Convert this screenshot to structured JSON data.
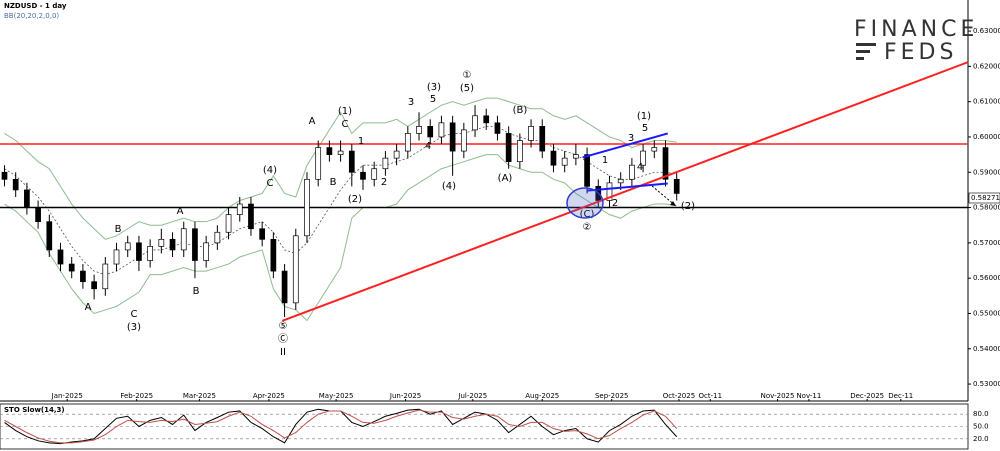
{
  "chart_data": [
    {
      "type": "candlestick",
      "title": "NZDUSD - 1 day",
      "subtitle": "BB(20,20,2,0,0)",
      "brand": {
        "line1": "FINANCE",
        "line2": "FEDS"
      },
      "x": [
        -28,
        -23,
        -18,
        -13,
        -8,
        -3,
        2,
        7,
        12,
        17,
        22,
        27,
        32,
        37,
        42,
        47,
        52,
        57,
        62,
        67,
        72,
        77,
        82,
        87,
        92,
        97,
        102,
        107,
        112,
        117,
        122,
        127,
        132,
        137,
        142,
        147,
        152,
        157,
        162,
        167,
        172,
        177,
        182,
        187,
        192,
        197,
        202,
        207,
        212,
        217,
        222,
        227,
        232,
        237,
        242,
        247,
        252,
        257,
        262,
        267,
        272
      ],
      "open": [
        0.59,
        0.588,
        0.585,
        0.58,
        0.576,
        0.568,
        0.564,
        0.562,
        0.559,
        0.557,
        0.564,
        0.568,
        0.57,
        0.565,
        0.569,
        0.571,
        0.568,
        0.574,
        0.565,
        0.57,
        0.573,
        0.578,
        0.581,
        0.574,
        0.571,
        0.562,
        0.553,
        0.572,
        0.588,
        0.597,
        0.595,
        0.596,
        0.59,
        0.588,
        0.591,
        0.594,
        0.596,
        0.601,
        0.603,
        0.6,
        0.604,
        0.596,
        0.602,
        0.606,
        0.604,
        0.601,
        0.593,
        0.599,
        0.603,
        0.596,
        0.592,
        0.594,
        0.595,
        0.586,
        0.582,
        0.587,
        0.588,
        0.592,
        0.596,
        0.597,
        0.588
      ],
      "high": [
        0.592,
        0.59,
        0.587,
        0.582,
        0.578,
        0.57,
        0.566,
        0.564,
        0.561,
        0.566,
        0.57,
        0.572,
        0.572,
        0.571,
        0.574,
        0.573,
        0.576,
        0.576,
        0.572,
        0.575,
        0.58,
        0.583,
        0.583,
        0.576,
        0.573,
        0.564,
        0.574,
        0.59,
        0.599,
        0.599,
        0.599,
        0.598,
        0.592,
        0.593,
        0.596,
        0.598,
        0.603,
        0.607,
        0.605,
        0.606,
        0.606,
        0.604,
        0.609,
        0.608,
        0.606,
        0.603,
        0.601,
        0.605,
        0.605,
        0.598,
        0.596,
        0.598,
        0.597,
        0.588,
        0.589,
        0.59,
        0.594,
        0.598,
        0.599,
        0.599,
        0.59
      ],
      "low": [
        0.586,
        0.583,
        0.578,
        0.574,
        0.566,
        0.562,
        0.56,
        0.557,
        0.554,
        0.555,
        0.562,
        0.566,
        0.562,
        0.563,
        0.567,
        0.566,
        0.566,
        0.56,
        0.563,
        0.568,
        0.571,
        0.576,
        0.572,
        0.569,
        0.56,
        0.549,
        0.551,
        0.57,
        0.586,
        0.593,
        0.593,
        0.586,
        0.585,
        0.586,
        0.589,
        0.592,
        0.594,
        0.599,
        0.598,
        0.598,
        0.589,
        0.594,
        0.6,
        0.602,
        0.599,
        0.591,
        0.591,
        0.597,
        0.594,
        0.59,
        0.59,
        0.592,
        0.584,
        0.58,
        0.58,
        0.585,
        0.586,
        0.59,
        0.594,
        0.586,
        0.582
      ],
      "close": [
        0.588,
        0.585,
        0.58,
        0.576,
        0.568,
        0.564,
        0.562,
        0.559,
        0.557,
        0.564,
        0.568,
        0.57,
        0.565,
        0.569,
        0.571,
        0.568,
        0.574,
        0.565,
        0.57,
        0.573,
        0.578,
        0.581,
        0.574,
        0.571,
        0.562,
        0.553,
        0.572,
        0.588,
        0.597,
        0.595,
        0.596,
        0.59,
        0.588,
        0.591,
        0.594,
        0.596,
        0.601,
        0.603,
        0.6,
        0.604,
        0.596,
        0.602,
        0.606,
        0.604,
        0.601,
        0.593,
        0.599,
        0.603,
        0.596,
        0.592,
        0.594,
        0.595,
        0.586,
        0.582,
        0.587,
        0.588,
        0.592,
        0.596,
        0.597,
        0.588,
        0.584
      ],
      "up_color": "#ffffff",
      "down_color": "#000000",
      "bands": {
        "color": "#8fbc8f",
        "mid_color": "#555555",
        "upper": [
          0.601,
          0.599,
          0.596,
          0.593,
          0.591,
          0.586,
          0.581,
          0.577,
          0.574,
          0.571,
          0.572,
          0.574,
          0.576,
          0.575,
          0.575,
          0.576,
          0.577,
          0.576,
          0.576,
          0.577,
          0.58,
          0.582,
          0.583,
          0.584,
          0.589,
          0.584,
          0.583,
          0.592,
          0.597,
          0.602,
          0.607,
          0.601,
          0.604,
          0.604,
          0.604,
          0.605,
          0.603,
          0.605,
          0.607,
          0.609,
          0.61,
          0.609,
          0.61,
          0.611,
          0.611,
          0.61,
          0.609,
          0.608,
          0.608,
          0.606,
          0.605,
          0.606,
          0.604,
          0.602,
          0.6,
          0.599,
          0.597,
          0.598,
          0.599,
          0.599,
          0.5985
        ],
        "middle": [
          0.591,
          0.589,
          0.586,
          0.583,
          0.579,
          0.574,
          0.569,
          0.565,
          0.562,
          0.561,
          0.562,
          0.564,
          0.566,
          0.568,
          0.568,
          0.569,
          0.57,
          0.569,
          0.569,
          0.57,
          0.572,
          0.574,
          0.575,
          0.576,
          0.573,
          0.568,
          0.567,
          0.57,
          0.575,
          0.58,
          0.585,
          0.589,
          0.592,
          0.592,
          0.592,
          0.593,
          0.594,
          0.596,
          0.598,
          0.6,
          0.601,
          0.601,
          0.602,
          0.603,
          0.603,
          0.601,
          0.6,
          0.599,
          0.599,
          0.597,
          0.596,
          0.595,
          0.593,
          0.591,
          0.589,
          0.588,
          0.588,
          0.589,
          0.59,
          0.59,
          0.5895
        ],
        "lower": [
          0.581,
          0.579,
          0.576,
          0.573,
          0.567,
          0.562,
          0.557,
          0.553,
          0.55,
          0.551,
          0.552,
          0.554,
          0.556,
          0.561,
          0.561,
          0.562,
          0.563,
          0.562,
          0.562,
          0.563,
          0.564,
          0.566,
          0.567,
          0.568,
          0.557,
          0.552,
          0.551,
          0.548,
          0.553,
          0.558,
          0.563,
          0.577,
          0.58,
          0.58,
          0.58,
          0.581,
          0.585,
          0.587,
          0.589,
          0.591,
          0.592,
          0.593,
          0.594,
          0.595,
          0.595,
          0.592,
          0.591,
          0.59,
          0.59,
          0.588,
          0.587,
          0.584,
          0.582,
          0.58,
          0.578,
          0.577,
          0.579,
          0.58,
          0.581,
          0.581,
          0.5805
        ]
      },
      "hlines": [
        {
          "value": 0.598,
          "color": "#ff2020"
        },
        {
          "value": 0.58,
          "color": "#000000"
        }
      ],
      "trendlines": [
        {
          "x": [
            96,
            402
          ],
          "y": [
            0.5479,
            0.6212
          ],
          "color": "#ff2020"
        },
        {
          "x": [
            230,
            268
          ],
          "y": [
            0.5942,
            0.601
          ],
          "color": "#1a1aff"
        },
        {
          "x": [
            232,
            268
          ],
          "y": [
            0.5848,
            0.5868
          ],
          "color": "#1a1aff"
        }
      ],
      "last_price": 0.58271,
      "wave_labels": [
        "A",
        "B",
        "C",
        "(3)",
        "A",
        "B",
        "C",
        "(4)",
        "⑤",
        "Ⓒ",
        "II",
        "A",
        "B",
        "(1)",
        "C",
        "(2)",
        "1",
        "2",
        "3",
        "5",
        "(3)",
        "4",
        "(4)",
        "①",
        "(5)",
        "(B)",
        "(A)",
        "1",
        "2",
        "(C)",
        "②",
        "3",
        "5",
        "(1)",
        "4",
        "(2)"
      ],
      "xlim": [
        -30,
        402
      ],
      "xticks": [
        {
          "value": 0,
          "label": "Jan-2025"
        },
        {
          "value": 31,
          "label": "Feb-2025"
        },
        {
          "value": 59,
          "label": "Mar-2025"
        },
        {
          "value": 90,
          "label": "Apr-2025"
        },
        {
          "value": 120,
          "label": "May-2025"
        },
        {
          "value": 151,
          "label": "Jun-2025"
        },
        {
          "value": 181,
          "label": "Jul-2025"
        },
        {
          "value": 212,
          "label": "Aug-2025"
        },
        {
          "value": 243,
          "label": "Sep-2025"
        },
        {
          "value": 273,
          "label": "Oct-2025"
        },
        {
          "value": 287,
          "label": "Oct-11"
        },
        {
          "value": 317,
          "label": "Nov-2025"
        },
        {
          "value": 331,
          "label": "Nov-11"
        },
        {
          "value": 357,
          "label": "Dec-2025"
        },
        {
          "value": 372,
          "label": "Dec-11"
        }
      ],
      "ylim": [
        0.5252,
        0.6388
      ],
      "yticks": [
        {
          "value": 0.53,
          "label": "0.53000"
        },
        {
          "value": 0.54,
          "label": "0.54000"
        },
        {
          "value": 0.55,
          "label": "0.55000"
        },
        {
          "value": 0.56,
          "label": "0.56000"
        },
        {
          "value": 0.57,
          "label": "0.57000"
        },
        {
          "value": 0.58,
          "label": "0.58000"
        },
        {
          "value": 0.59,
          "label": "0.59000"
        },
        {
          "value": 0.6,
          "label": "0.60000"
        },
        {
          "value": 0.61,
          "label": "0.61000"
        },
        {
          "value": 0.62,
          "label": "0.62000"
        },
        {
          "value": 0.63,
          "label": "0.63000"
        }
      ]
    },
    {
      "type": "line",
      "title": "STO Slow(14,3)",
      "x": [
        -28,
        -23,
        -18,
        -13,
        -8,
        -3,
        2,
        7,
        12,
        17,
        22,
        27,
        32,
        37,
        42,
        47,
        52,
        57,
        62,
        67,
        72,
        77,
        82,
        87,
        92,
        97,
        102,
        107,
        112,
        117,
        122,
        127,
        132,
        137,
        142,
        147,
        152,
        157,
        162,
        167,
        172,
        177,
        182,
        187,
        192,
        197,
        202,
        207,
        212,
        217,
        222,
        227,
        232,
        237,
        242,
        247,
        252,
        257,
        262,
        267,
        272
      ],
      "series": [
        {
          "color": "#000000",
          "values": [
            60,
            40,
            25,
            15,
            10,
            8,
            12,
            15,
            20,
            45,
            70,
            75,
            50,
            65,
            72,
            55,
            78,
            40,
            60,
            72,
            85,
            88,
            60,
            45,
            25,
            10,
            55,
            85,
            92,
            88,
            88,
            60,
            50,
            62,
            75,
            82,
            90,
            92,
            80,
            88,
            55,
            70,
            85,
            80,
            65,
            35,
            55,
            75,
            50,
            30,
            40,
            45,
            20,
            12,
            40,
            55,
            75,
            88,
            90,
            55,
            25
          ]
        },
        {
          "color": "#c0504d",
          "values": [
            65,
            50,
            35,
            22,
            14,
            10,
            10,
            13,
            17,
            30,
            50,
            65,
            62,
            60,
            65,
            62,
            68,
            55,
            58,
            62,
            75,
            85,
            75,
            55,
            40,
            22,
            35,
            60,
            80,
            88,
            88,
            75,
            60,
            58,
            65,
            75,
            83,
            90,
            85,
            85,
            72,
            68,
            75,
            80,
            75,
            55,
            50,
            60,
            60,
            45,
            38,
            40,
            32,
            20,
            28,
            45,
            60,
            78,
            88,
            75,
            45
          ]
        }
      ],
      "xlim": [
        -30,
        402
      ],
      "ylim": [
        -5,
        105
      ],
      "yticks": [
        {
          "value": 20,
          "label": "20.0"
        },
        {
          "value": 50,
          "label": "50.0"
        },
        {
          "value": 80,
          "label": "80.0"
        }
      ],
      "grid": true
    }
  ]
}
